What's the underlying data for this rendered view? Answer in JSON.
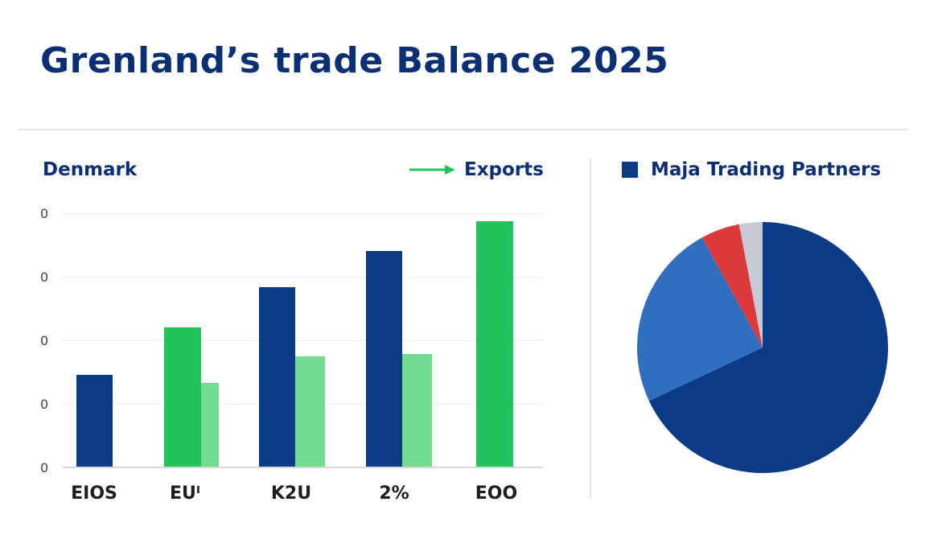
{
  "header": {
    "title": "Grenland’s trade Balance 2025"
  },
  "bar_panel": {
    "title": "Denmark",
    "legend_label": "Exports",
    "legend_icon": "arrow-right-icon",
    "y_ticks": [
      "0",
      "0",
      "0",
      "0",
      "0"
    ],
    "x_labels": [
      "EIOS",
      "EUᴵ",
      "K2U",
      "2%",
      "EOO"
    ]
  },
  "pie_panel": {
    "title": "Maja Trading Partners",
    "legend_icon": "square-icon"
  },
  "colors": {
    "title": "#0b2f73",
    "dark_blue": "#0b3a86",
    "green": "#22c35a",
    "light_green": "#72dc90",
    "mid_blue": "#2f6fbe",
    "red": "#dc3a3a",
    "gray": "#c5ccd6",
    "grid": "#ececec"
  },
  "chart_data": [
    {
      "type": "bar",
      "title": "Denmark",
      "legend": [
        "Exports"
      ],
      "categories": [
        "EIOS",
        "EUᴵ",
        "K2U",
        "2%",
        "EOO"
      ],
      "series": [
        {
          "name": "primary",
          "colors": [
            "#0b3a86",
            "#22c35a",
            "#0b3a86",
            "#0b3a86",
            "#22c35a"
          ],
          "values": [
            1.46,
            2.2,
            2.83,
            3.4,
            3.87
          ]
        },
        {
          "name": "secondary",
          "color": "#72dc90",
          "values": [
            null,
            1.33,
            1.75,
            1.78,
            null
          ]
        }
      ],
      "y_tick_labels": [
        "0",
        "0",
        "0",
        "0",
        "0"
      ],
      "ylim": [
        0,
        4
      ],
      "grid": true,
      "xlabel": "",
      "ylabel": ""
    },
    {
      "type": "pie",
      "title": "Maja Trading Partners",
      "slices": [
        {
          "label": "",
          "value": 68,
          "color": "#0b3a86"
        },
        {
          "label": "",
          "value": 24,
          "color": "#2f6fbe"
        },
        {
          "label": "",
          "value": 5,
          "color": "#dc3a3a"
        },
        {
          "label": "",
          "value": 3,
          "color": "#c5ccd6"
        }
      ]
    }
  ]
}
